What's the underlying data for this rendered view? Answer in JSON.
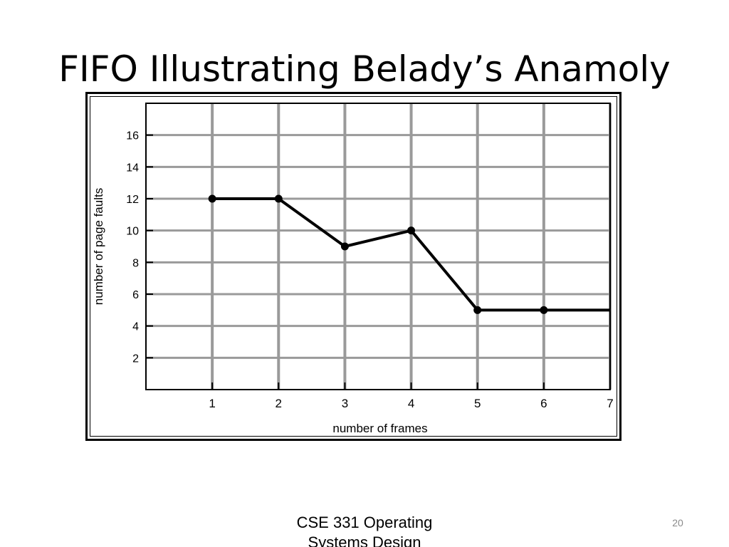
{
  "slide": {
    "title": "FIFO Illustrating Belady’s Anamoly",
    "footer_line1": "CSE 331 Operating",
    "footer_line2": "Systems Design",
    "page_number": "20"
  },
  "chart_data": {
    "type": "line",
    "title": "",
    "xlabel": "number of frames",
    "ylabel": "number of page faults",
    "x": [
      1,
      2,
      3,
      4,
      5,
      6,
      7
    ],
    "y": [
      12,
      12,
      9,
      10,
      5,
      5,
      5
    ],
    "xlim": [
      0,
      7
    ],
    "ylim": [
      0,
      18
    ],
    "x_ticks": [
      1,
      2,
      3,
      4,
      5,
      6,
      7
    ],
    "y_ticks": [
      2,
      4,
      6,
      8,
      10,
      12,
      14,
      16
    ],
    "grid": true,
    "line_color": "#000000",
    "grid_color": "#9a9a9a",
    "markers_shown_at": [
      1,
      2,
      3,
      4,
      5,
      6
    ]
  }
}
